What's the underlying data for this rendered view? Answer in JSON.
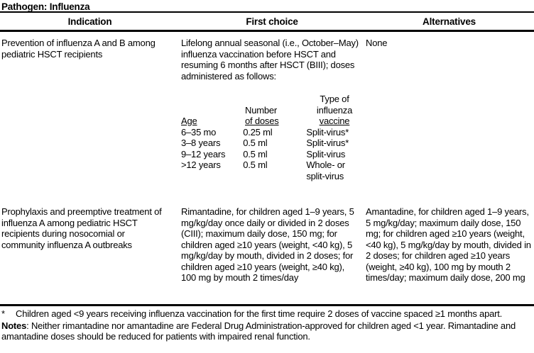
{
  "header": {
    "pathogen": "Pathogen: Influenza"
  },
  "table": {
    "columns": [
      "Indication",
      "First choice",
      "Alternatives"
    ],
    "rows": [
      {
        "indication": "Prevention of influenza A and B among pediatric HSCT recipients",
        "first_choice": "Lifelong annual seasonal (i.e., October–May) influenza vaccination before HSCT and resuming 6 months after HSCT (BIII); doses administered as follows:",
        "alternatives": "None",
        "dose_table": {
          "headers": [
            [
              "Age"
            ],
            [
              "Number",
              "of doses"
            ],
            [
              "Type of",
              "influenza",
              "vaccine"
            ]
          ],
          "rows": [
            [
              "6–35 mo",
              "0.25 ml",
              "Split-virus*"
            ],
            [
              "3–8 years",
              "0.5 ml",
              "Split-virus*"
            ],
            [
              "9–12 years",
              "0.5 ml",
              "Split-virus"
            ],
            [
              ">12 years",
              "0.5 ml",
              "Whole- or split-virus"
            ]
          ]
        }
      },
      {
        "indication": "Prophylaxis and preemptive treatment of influenza A among pediatric HSCT recipients during nosocomial or community influenza A outbreaks",
        "first_choice": "Rimantadine, for children aged 1–9 years, 5 mg/kg/day once daily or divided in 2 doses (CIII); maximum daily dose, 150 mg; for children aged ≥10 years (weight, <40 kg), 5 mg/kg/day by mouth, divided in 2 doses; for children aged ≥10 years (weight, ≥40 kg), 100 mg by mouth 2 times/day",
        "alternatives": "Amantadine, for children aged 1–9 years, 5 mg/kg/day; maximum daily dose, 150 mg; for children aged ≥10 years (weight, <40 kg), 5 mg/kg/day by mouth, divided in 2 doses; for children aged ≥10 years (weight, ≥40 kg), 100 mg by mouth 2 times/day; maximum daily dose, 200 mg"
      }
    ]
  },
  "footnotes": {
    "asterisk_marker": "*",
    "asterisk_text": "Children aged <9 years receiving influenza vaccination for the first time require 2 doses of vaccine spaced ≥1 months apart.",
    "notes_label": "Notes",
    "notes_text": ": Neither rimantadine nor amantadine are Federal Drug Administration-approved for children aged <1 year. Rimantadine and amantadine doses should be reduced for patients with impaired renal function."
  }
}
